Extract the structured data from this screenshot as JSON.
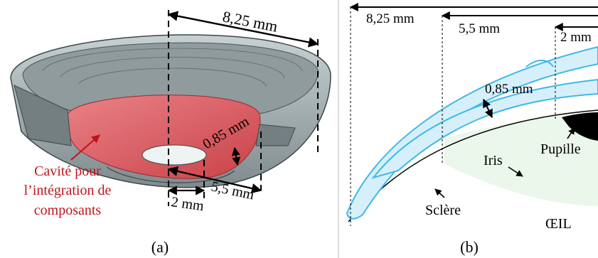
{
  "panel_a": {
    "caption": "(a)",
    "dim_outer": "8,25 mm",
    "dim_mid": "5,5 mm",
    "dim_inner": "2 mm",
    "dim_thickness": "0,85 mm",
    "cavity_label_lines": [
      "Cavité pour",
      "l’intégration de",
      "composants"
    ]
  },
  "panel_b": {
    "caption": "(b)",
    "dim_outer": "8,25 mm",
    "dim_mid": "5,5 mm",
    "dim_inner": "2 mm",
    "dim_thickness": "0,85 mm",
    "label_iris": "Iris",
    "label_pupil": "Pupille",
    "label_sclera": "Sclère",
    "label_eye": "ŒIL"
  },
  "colors": {
    "lens_gray": "#a9b6b7",
    "lens_dark": "#6f7b7e",
    "cavity_red": "#e05a5f",
    "lens_blue": "#3fb8e8",
    "lens_blue_fill": "#d6f0fb",
    "iris_green": "#eaf7ea",
    "label_red": "#c0141c"
  }
}
